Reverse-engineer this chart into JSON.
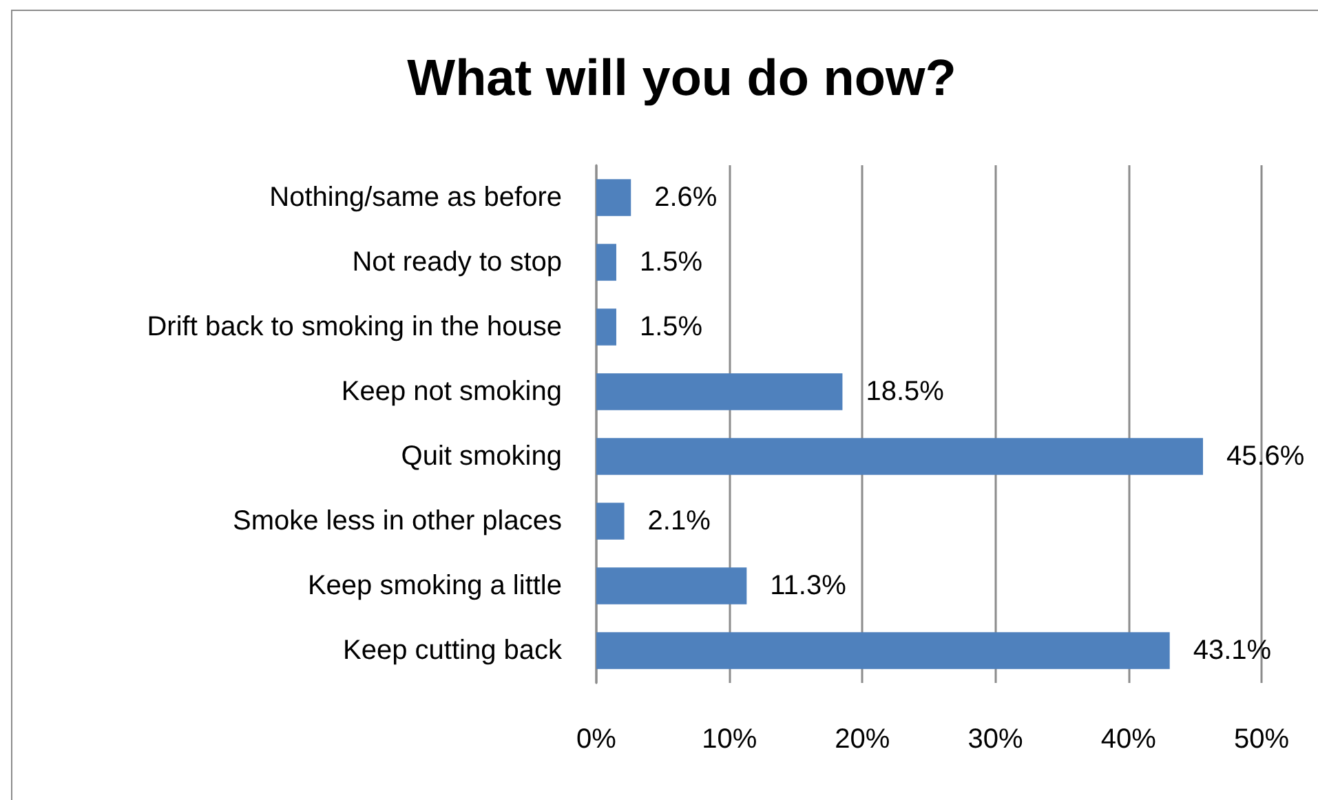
{
  "chart_data": {
    "type": "bar",
    "orientation": "horizontal",
    "title": "What will you do now?",
    "categories": [
      "Nothing/same as before",
      "Not ready to stop",
      "Drift back to smoking in the house",
      "Keep not smoking",
      "Quit smoking",
      "Smoke less in other places",
      "Keep smoking a little",
      "Keep cutting back"
    ],
    "values": [
      2.6,
      1.5,
      1.5,
      18.5,
      45.6,
      2.1,
      11.3,
      43.1
    ],
    "value_labels": [
      "2.6%",
      "1.5%",
      "1.5%",
      "18.5%",
      "45.6%",
      "2.1%",
      "11.3%",
      "43.1%"
    ],
    "color": "#4f81bd",
    "xlim": [
      0,
      50
    ],
    "xticks": [
      {
        "value": 0,
        "label": "0%"
      },
      {
        "value": 10,
        "label": "10%"
      },
      {
        "value": 20,
        "label": "20%"
      },
      {
        "value": 30,
        "label": "30%"
      },
      {
        "value": 40,
        "label": "40%"
      },
      {
        "value": 50,
        "label": "50%"
      }
    ],
    "grid": "x"
  }
}
